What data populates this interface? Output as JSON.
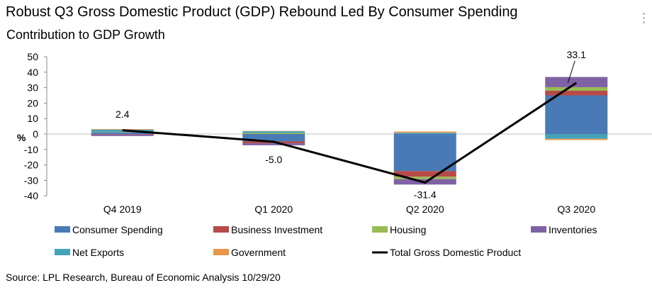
{
  "title": "Robust Q3 Gross Domestic Product (GDP) Rebound Led By Consumer Spending",
  "source": "Source: LPL Research, Bureau of Economic Analysis 10/29/20",
  "chart_data": {
    "type": "bar",
    "stacked": true,
    "title": "Contribution to GDP Growth",
    "xlabel": "",
    "ylabel": "%",
    "ylim": [
      -40,
      50
    ],
    "yticks": [
      50,
      40,
      30,
      20,
      10,
      0,
      -10,
      -20,
      -30,
      -40
    ],
    "grid": false,
    "legend_position": "bottom",
    "categories": [
      "Q4 2019",
      "Q1 2020",
      "Q2 2020",
      "Q3 2020"
    ],
    "series": [
      {
        "name": "Consumer Spending",
        "type": "bar",
        "color": "#4a7ab5",
        "values": [
          1.1,
          -4.8,
          -24.0,
          25.0
        ]
      },
      {
        "name": "Business Investment",
        "type": "bar",
        "color": "#b84a48",
        "values": [
          -0.3,
          -1.2,
          -3.6,
          3.0
        ]
      },
      {
        "name": "Housing",
        "type": "bar",
        "color": "#98bb55",
        "values": [
          0.2,
          0.7,
          -1.6,
          2.3
        ]
      },
      {
        "name": "Inventories",
        "type": "bar",
        "color": "#7f62a3",
        "values": [
          -1.0,
          -1.3,
          -3.5,
          6.6
        ]
      },
      {
        "name": "Net Exports",
        "type": "bar",
        "color": "#45a3b8",
        "values": [
          1.5,
          1.1,
          0.8,
          -3.1
        ]
      },
      {
        "name": "Government",
        "type": "bar",
        "color": "#e8964a",
        "values": [
          0.4,
          0.2,
          0.8,
          -0.8
        ]
      },
      {
        "name": "Total Gross Domestic Product",
        "type": "line",
        "color": "#000000",
        "values": [
          2.4,
          -5.0,
          -31.4,
          33.1
        ]
      }
    ],
    "data_labels": [
      "2.4",
      "-5.0",
      "-31.4",
      "33.1"
    ]
  }
}
